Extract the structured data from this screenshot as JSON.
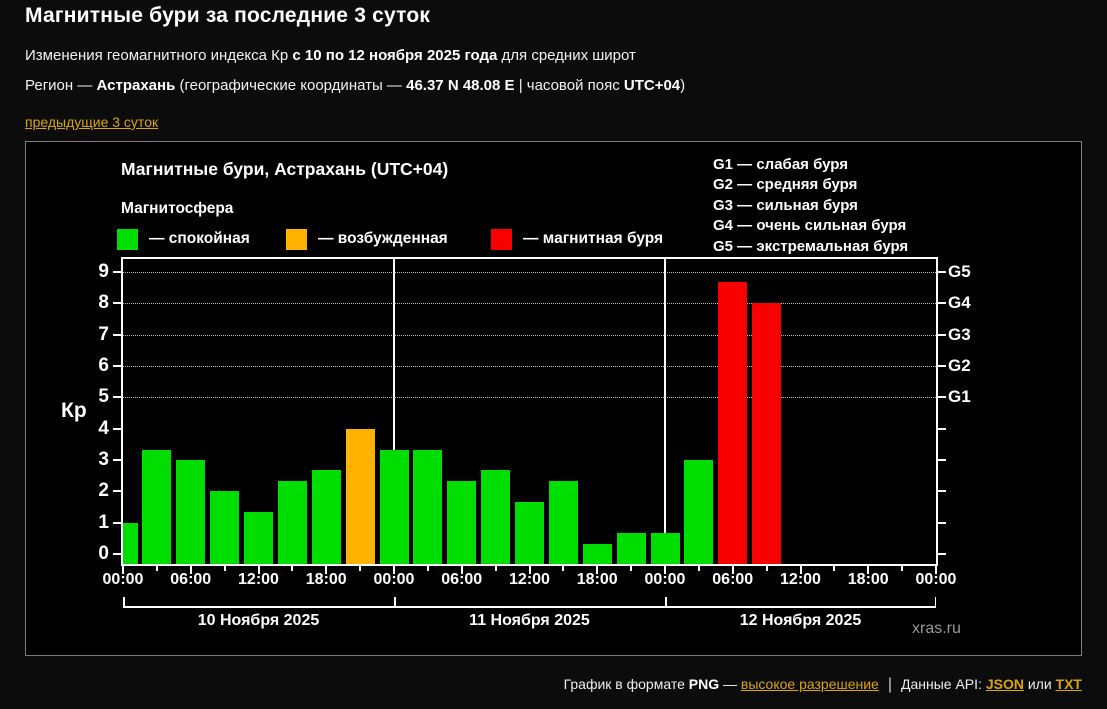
{
  "header": {
    "title": "Магнитные бури за последние 3 суток",
    "subtitle_pre": "Изменения геомагнитного индекса Кр ",
    "subtitle_bold": "с 10 по 12 ноября 2025 года",
    "subtitle_post": " для средних широт",
    "region_pre": "Регион — ",
    "region_name": "Астрахань",
    "region_mid": " (географические координаты — ",
    "region_coords": "46.37 N 48.08 E",
    "region_mid2": " | часовой пояс ",
    "region_tz": "UTC+04",
    "region_post": ")",
    "prev_link": "предыдущие 3 суток"
  },
  "chart": {
    "title": "Магнитные бури, Астрахань (UTC+04)",
    "legend_title": "Магнитосфера",
    "legend": [
      {
        "state": "quiet",
        "label": "— спокойная",
        "color": "#00dd00"
      },
      {
        "state": "excited",
        "label": "— возбужденная",
        "color": "#ffb300"
      },
      {
        "state": "storm",
        "label": "— магнитная буря",
        "color": "#f80000"
      }
    ],
    "g_legend": [
      "G1 — слабая буря",
      "G2 — средняя буря",
      "G3 — сильная буря",
      "G4 — очень сильная буря",
      "G5 — экстремальная буря"
    ],
    "watermark": "xras.ru"
  },
  "chart_data": {
    "type": "bar",
    "title": "Магнитные бури, Астрахань (UTC+04)",
    "ylabel": "Кр",
    "ylim": [
      0,
      9
    ],
    "yticks": [
      0,
      1,
      2,
      3,
      4,
      5,
      6,
      7,
      8,
      9
    ],
    "gridline_values": [
      5,
      6,
      7,
      8,
      9
    ],
    "right_axis": [
      {
        "value": 9,
        "label": "G5"
      },
      {
        "value": 8,
        "label": "G4"
      },
      {
        "value": 7,
        "label": "G3"
      },
      {
        "value": 6,
        "label": "G2"
      },
      {
        "value": 5,
        "label": "G1"
      }
    ],
    "hours_per_bar": 3,
    "x_major_labels": [
      "00:00",
      "06:00",
      "12:00",
      "18:00",
      "00:00",
      "06:00",
      "12:00",
      "18:00",
      "00:00",
      "06:00",
      "12:00",
      "18:00",
      "00:00"
    ],
    "state_colors": {
      "quiet": "#00dd00",
      "excited": "#ffb300",
      "storm": "#f80000"
    },
    "days": [
      {
        "date": "10 Ноября 2025",
        "bars": [
          {
            "time": "00:00",
            "kp": 1.0,
            "state": "quiet"
          },
          {
            "time": "03:00",
            "kp": 3.33,
            "state": "quiet"
          },
          {
            "time": "06:00",
            "kp": 3.0,
            "state": "quiet"
          },
          {
            "time": "09:00",
            "kp": 2.0,
            "state": "quiet"
          },
          {
            "time": "12:00",
            "kp": 1.33,
            "state": "quiet"
          },
          {
            "time": "15:00",
            "kp": 2.33,
            "state": "quiet"
          },
          {
            "time": "18:00",
            "kp": 2.67,
            "state": "quiet"
          },
          {
            "time": "21:00",
            "kp": 4.0,
            "state": "excited"
          }
        ]
      },
      {
        "date": "11 Ноября 2025",
        "bars": [
          {
            "time": "00:00",
            "kp": 3.33,
            "state": "quiet"
          },
          {
            "time": "03:00",
            "kp": 3.33,
            "state": "quiet"
          },
          {
            "time": "06:00",
            "kp": 2.33,
            "state": "quiet"
          },
          {
            "time": "09:00",
            "kp": 2.67,
            "state": "quiet"
          },
          {
            "time": "12:00",
            "kp": 1.67,
            "state": "quiet"
          },
          {
            "time": "15:00",
            "kp": 2.33,
            "state": "quiet"
          },
          {
            "time": "18:00",
            "kp": 0.33,
            "state": "quiet"
          },
          {
            "time": "21:00",
            "kp": 0.67,
            "state": "quiet"
          }
        ]
      },
      {
        "date": "12 Ноября 2025",
        "bars": [
          {
            "time": "00:00",
            "kp": 0.67,
            "state": "quiet"
          },
          {
            "time": "03:00",
            "kp": 3.0,
            "state": "quiet"
          },
          {
            "time": "06:00",
            "kp": 8.67,
            "state": "storm"
          },
          {
            "time": "09:00",
            "kp": 8.0,
            "state": "storm"
          },
          {
            "time": "12:00",
            "kp": null,
            "state": null
          },
          {
            "time": "15:00",
            "kp": null,
            "state": null
          },
          {
            "time": "18:00",
            "kp": null,
            "state": null
          },
          {
            "time": "21:00",
            "kp": null,
            "state": null
          }
        ]
      }
    ]
  },
  "footer": {
    "format_label": "График в формате ",
    "format_type": "PNG",
    "dash": " — ",
    "hires_link": "высокое разрешение",
    "separator": "|",
    "api_label": "Данные API: ",
    "json_link": "JSON",
    "or_text": " или ",
    "txt_link": "TXT"
  },
  "colors": {
    "page_background": "#0c0c0c",
    "chart_background": "#000000",
    "panel_border": "#7d7d7d",
    "quiet_green": "#00dd00",
    "excited_orange": "#ffb300",
    "storm_red": "#f80000",
    "link_yellow": "#d9a508",
    "watermark_gray": "#979797"
  }
}
